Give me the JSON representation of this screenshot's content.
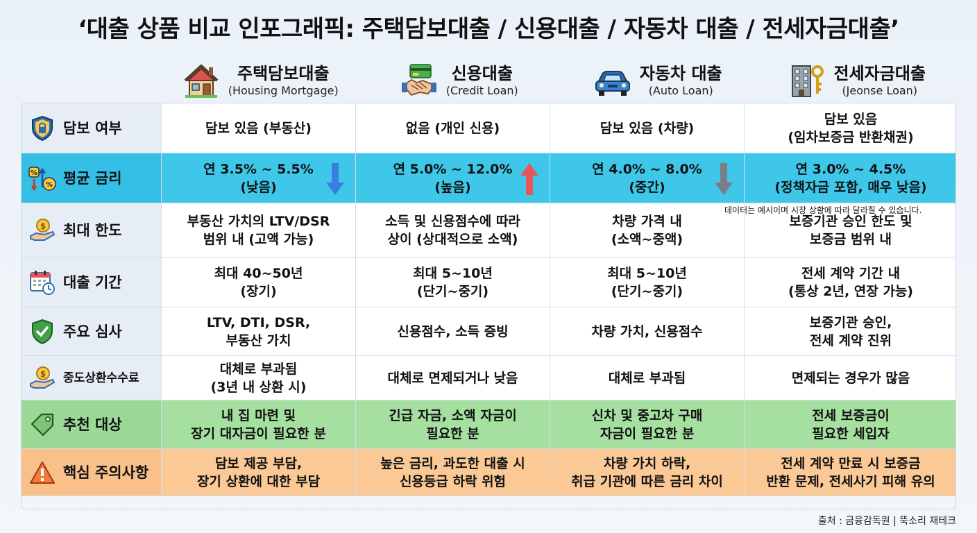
{
  "title": "‘대출 상품 비교 인포그래픽: 주택담보대출 / 신용대출 / 자동차 대출 / 전세자금대출’",
  "products": [
    {
      "name": "주택담보대출",
      "sub": "(Housing Mortgage)",
      "icon": "house-icon"
    },
    {
      "name": "신용대출",
      "sub": "(Credit Loan)",
      "icon": "handshake-card-icon"
    },
    {
      "name": "자동차 대출",
      "sub": "(Auto Loan)",
      "icon": "car-icon"
    },
    {
      "name": "전세자금대출",
      "sub": "(Jeonse Loan)",
      "icon": "building-key-icon"
    }
  ],
  "rows": [
    {
      "label": "담보 여부",
      "icon": "shield-lock-icon",
      "cells": [
        "담보 있음 (부동산)",
        "없음 (개인 신용)",
        "담보 있음 (차량)",
        "담보 있음\n(임차보증금 반환채권)"
      ]
    },
    {
      "label": "평균 금리",
      "icon": "interest-rate-icon",
      "cells": [
        "연 3.5% ~ 5.5%\n(낮음)",
        "연 5.0% ~ 12.0%\n(높음)",
        "연 4.0% ~ 8.0%\n(중간)",
        "연 3.0% ~ 4.5%\n(정책자금 포함, 매우 낮음)"
      ],
      "arrows": [
        "down-blue",
        "up-red",
        "down-gray",
        ""
      ]
    },
    {
      "label": "최대 한도",
      "icon": "hand-coin-icon",
      "cells": [
        "부동산 가치의 LTV/DSR\n범위 내 (고액 가능)",
        "소득 및 신용점수에 따라\n상이 (상대적으로 소액)",
        "차량 가격 내\n(소액~중액)",
        "보증기관 승인 한도 및\n보증금 범위 내"
      ]
    },
    {
      "label": "대출 기간",
      "icon": "calendar-clock-icon",
      "cells": [
        "최대 40~50년\n(장기)",
        "최대 5~10년\n(단기~중기)",
        "최대 5~10년\n(단기~중기)",
        "전세 계약 기간 내\n(통상 2년, 연장 가능)"
      ]
    },
    {
      "label": "주요 심사",
      "icon": "shield-check-icon",
      "cells": [
        "LTV, DTI, DSR,\n부동산 가치",
        "신용점수, 소득 증빙",
        "차량 가치, 신용점수",
        "보증기관 승인,\n전세 계약 진위"
      ]
    },
    {
      "label": "중도상환수수료",
      "icon": "hand-coin-icon",
      "cells": [
        "대체로 부과됨\n(3년 내 상환 시)",
        "대체로 면제되거나 낮음",
        "대체로 부과됨",
        "면제되는 경우가 많음"
      ]
    },
    {
      "label": "추천 대상",
      "icon": "tag-icon",
      "cells": [
        "내 집 마련 및\n장기 대자금이 필요한 분",
        "긴급 자금, 소액 자금이\n필요한 분",
        "신차 및 중고차 구매\n자금이 필요한 분",
        "전세 보증금이\n필요한 세입자"
      ]
    },
    {
      "label": "핵심 주의사항",
      "icon": "warning-icon",
      "cells": [
        "담보 제공 부담,\n장기 상환에 대한 부담",
        "높은 금리, 과도한 대출 시\n신용등급 하락 위험",
        "차량 가치 하락,\n취급 기관에 따른 금리 차이",
        "전세 계약 만료 시 보증금\n반환 문제, 전세사기 피해 유의"
      ]
    }
  ],
  "note": "데이터는 예시이며 시장 상황에 따라 달라질 수 있습니다.",
  "source": "출처 : 금융감독원 | 뚝소리 재테크",
  "colors": {
    "rate_row": "#3fc7ea",
    "recommend_row": "#a6e0a1",
    "warning_row": "#fbc996",
    "label_col": "#e7edf5"
  }
}
